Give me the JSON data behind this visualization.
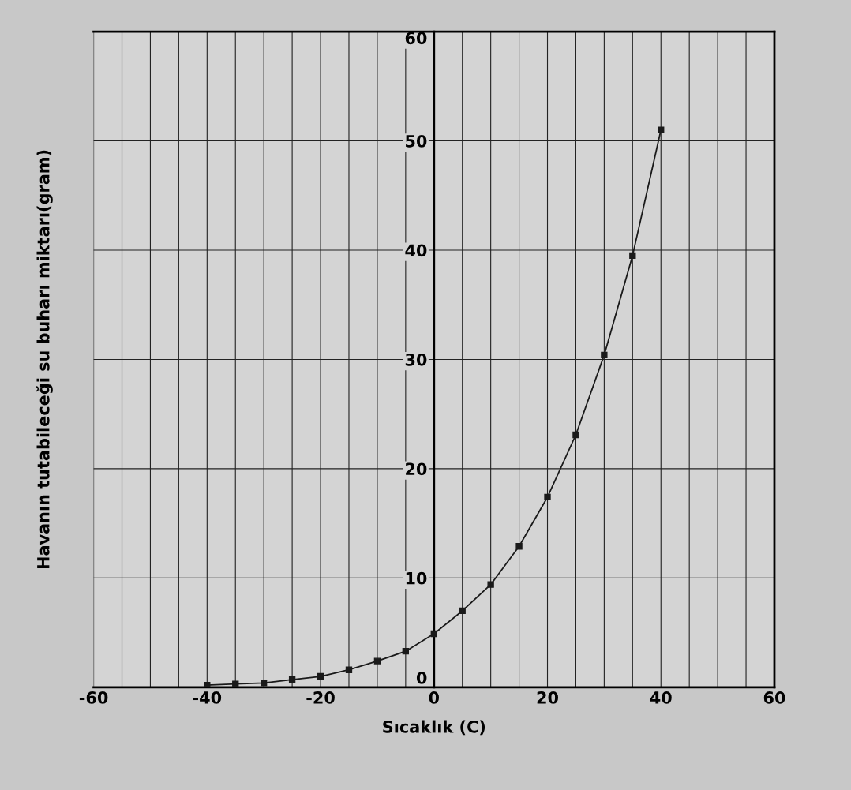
{
  "chart_data": {
    "type": "line",
    "xlabel": "Sıcaklık (C)",
    "ylabel": "Havanın tutabileceği su buharı miktarı(gram)",
    "x": [
      -40,
      -35,
      -30,
      -25,
      -20,
      -15,
      -10,
      -5,
      0,
      5,
      10,
      15,
      20,
      25,
      30,
      35,
      40
    ],
    "series": [
      {
        "color": "#1a1a1a",
        "values": [
          0.2,
          0.3,
          0.4,
          0.7,
          1.0,
          1.6,
          2.4,
          3.3,
          4.9,
          7.0,
          9.4,
          12.9,
          17.4,
          23.1,
          30.4,
          39.5,
          51.0
        ]
      }
    ],
    "xlim": [
      -60,
      60
    ],
    "ylim": [
      0,
      60
    ],
    "xticks": [
      -60,
      {
        "value": -55,
        "label": null
      },
      {
        "value": -50,
        "label": null
      },
      {
        "value": -45,
        "label": null
      },
      -40,
      {
        "value": -35,
        "label": null
      },
      {
        "value": -30,
        "label": null
      },
      {
        "value": -25,
        "label": null
      },
      -20,
      {
        "value": -15,
        "label": null
      },
      {
        "value": -10,
        "label": null
      },
      {
        "value": -5,
        "label": null
      },
      0,
      {
        "value": 5,
        "label": null
      },
      {
        "value": 10,
        "label": null
      },
      {
        "value": 15,
        "label": null
      },
      20,
      {
        "value": 25,
        "label": null
      },
      {
        "value": 30,
        "label": null
      },
      {
        "value": 35,
        "label": null
      },
      40,
      {
        "value": 45,
        "label": null
      },
      {
        "value": 50,
        "label": null
      },
      {
        "value": 55,
        "label": null
      },
      60
    ],
    "yticks": [
      0,
      10,
      20,
      30,
      40,
      50,
      60
    ],
    "grid": true,
    "marker": "square",
    "line_style": "solid"
  }
}
